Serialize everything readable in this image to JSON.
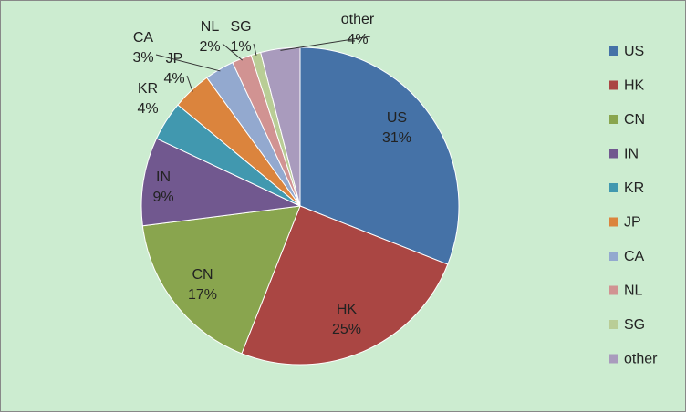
{
  "chart_data": {
    "type": "pie",
    "categories": [
      "US",
      "HK",
      "CN",
      "IN",
      "KR",
      "JP",
      "CA",
      "NL",
      "SG",
      "other"
    ],
    "values": [
      31,
      25,
      17,
      9,
      4,
      4,
      3,
      2,
      1,
      4
    ],
    "value_labels": [
      "31%",
      "25%",
      "17%",
      "9%",
      "4%",
      "4%",
      "3%",
      "2%",
      "1%",
      "4%"
    ],
    "colors": [
      "#4572a7",
      "#aa4643",
      "#89a54e",
      "#71588f",
      "#4198af",
      "#db843d",
      "#93a9cf",
      "#d19392",
      "#b9cd96",
      "#a99bbd"
    ],
    "legend": "right"
  }
}
